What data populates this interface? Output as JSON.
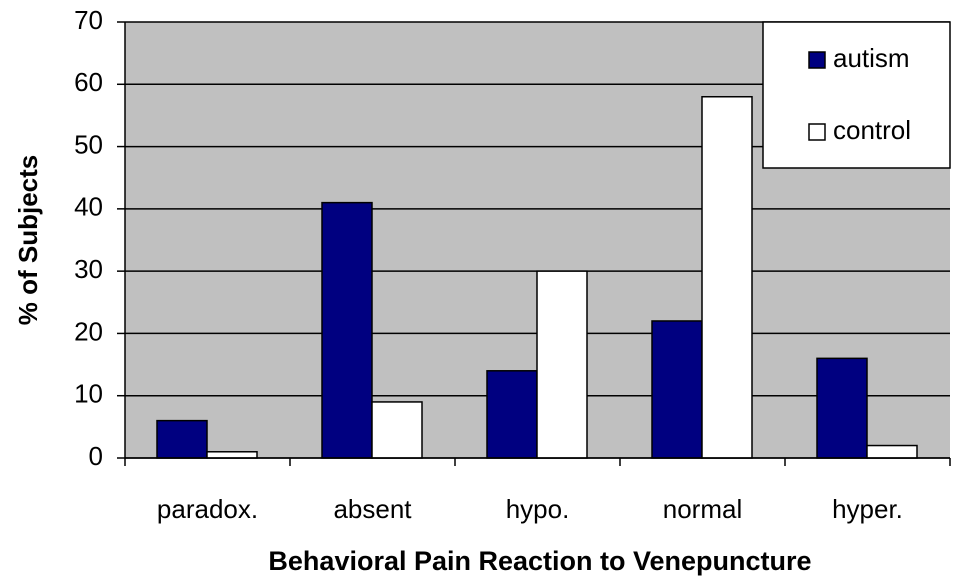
{
  "chart_data": {
    "type": "bar",
    "xlabel": "Behavioral Pain Reaction to Venepuncture",
    "ylabel": "% of Subjects",
    "categories": [
      "paradox.",
      "absent",
      "hypo.",
      "normal",
      "hyper."
    ],
    "series": [
      {
        "name": "autism",
        "color": "#000080",
        "values": [
          6,
          41,
          14,
          22,
          16
        ]
      },
      {
        "name": "control",
        "color": "#ffffff",
        "values": [
          1,
          9,
          30,
          58,
          2
        ]
      }
    ],
    "ylim": [
      0,
      70
    ],
    "yticks": [
      0,
      10,
      20,
      30,
      40,
      50,
      60,
      70
    ],
    "grid": true,
    "legend": "top-right",
    "plot_background": "#c0c0c0"
  }
}
